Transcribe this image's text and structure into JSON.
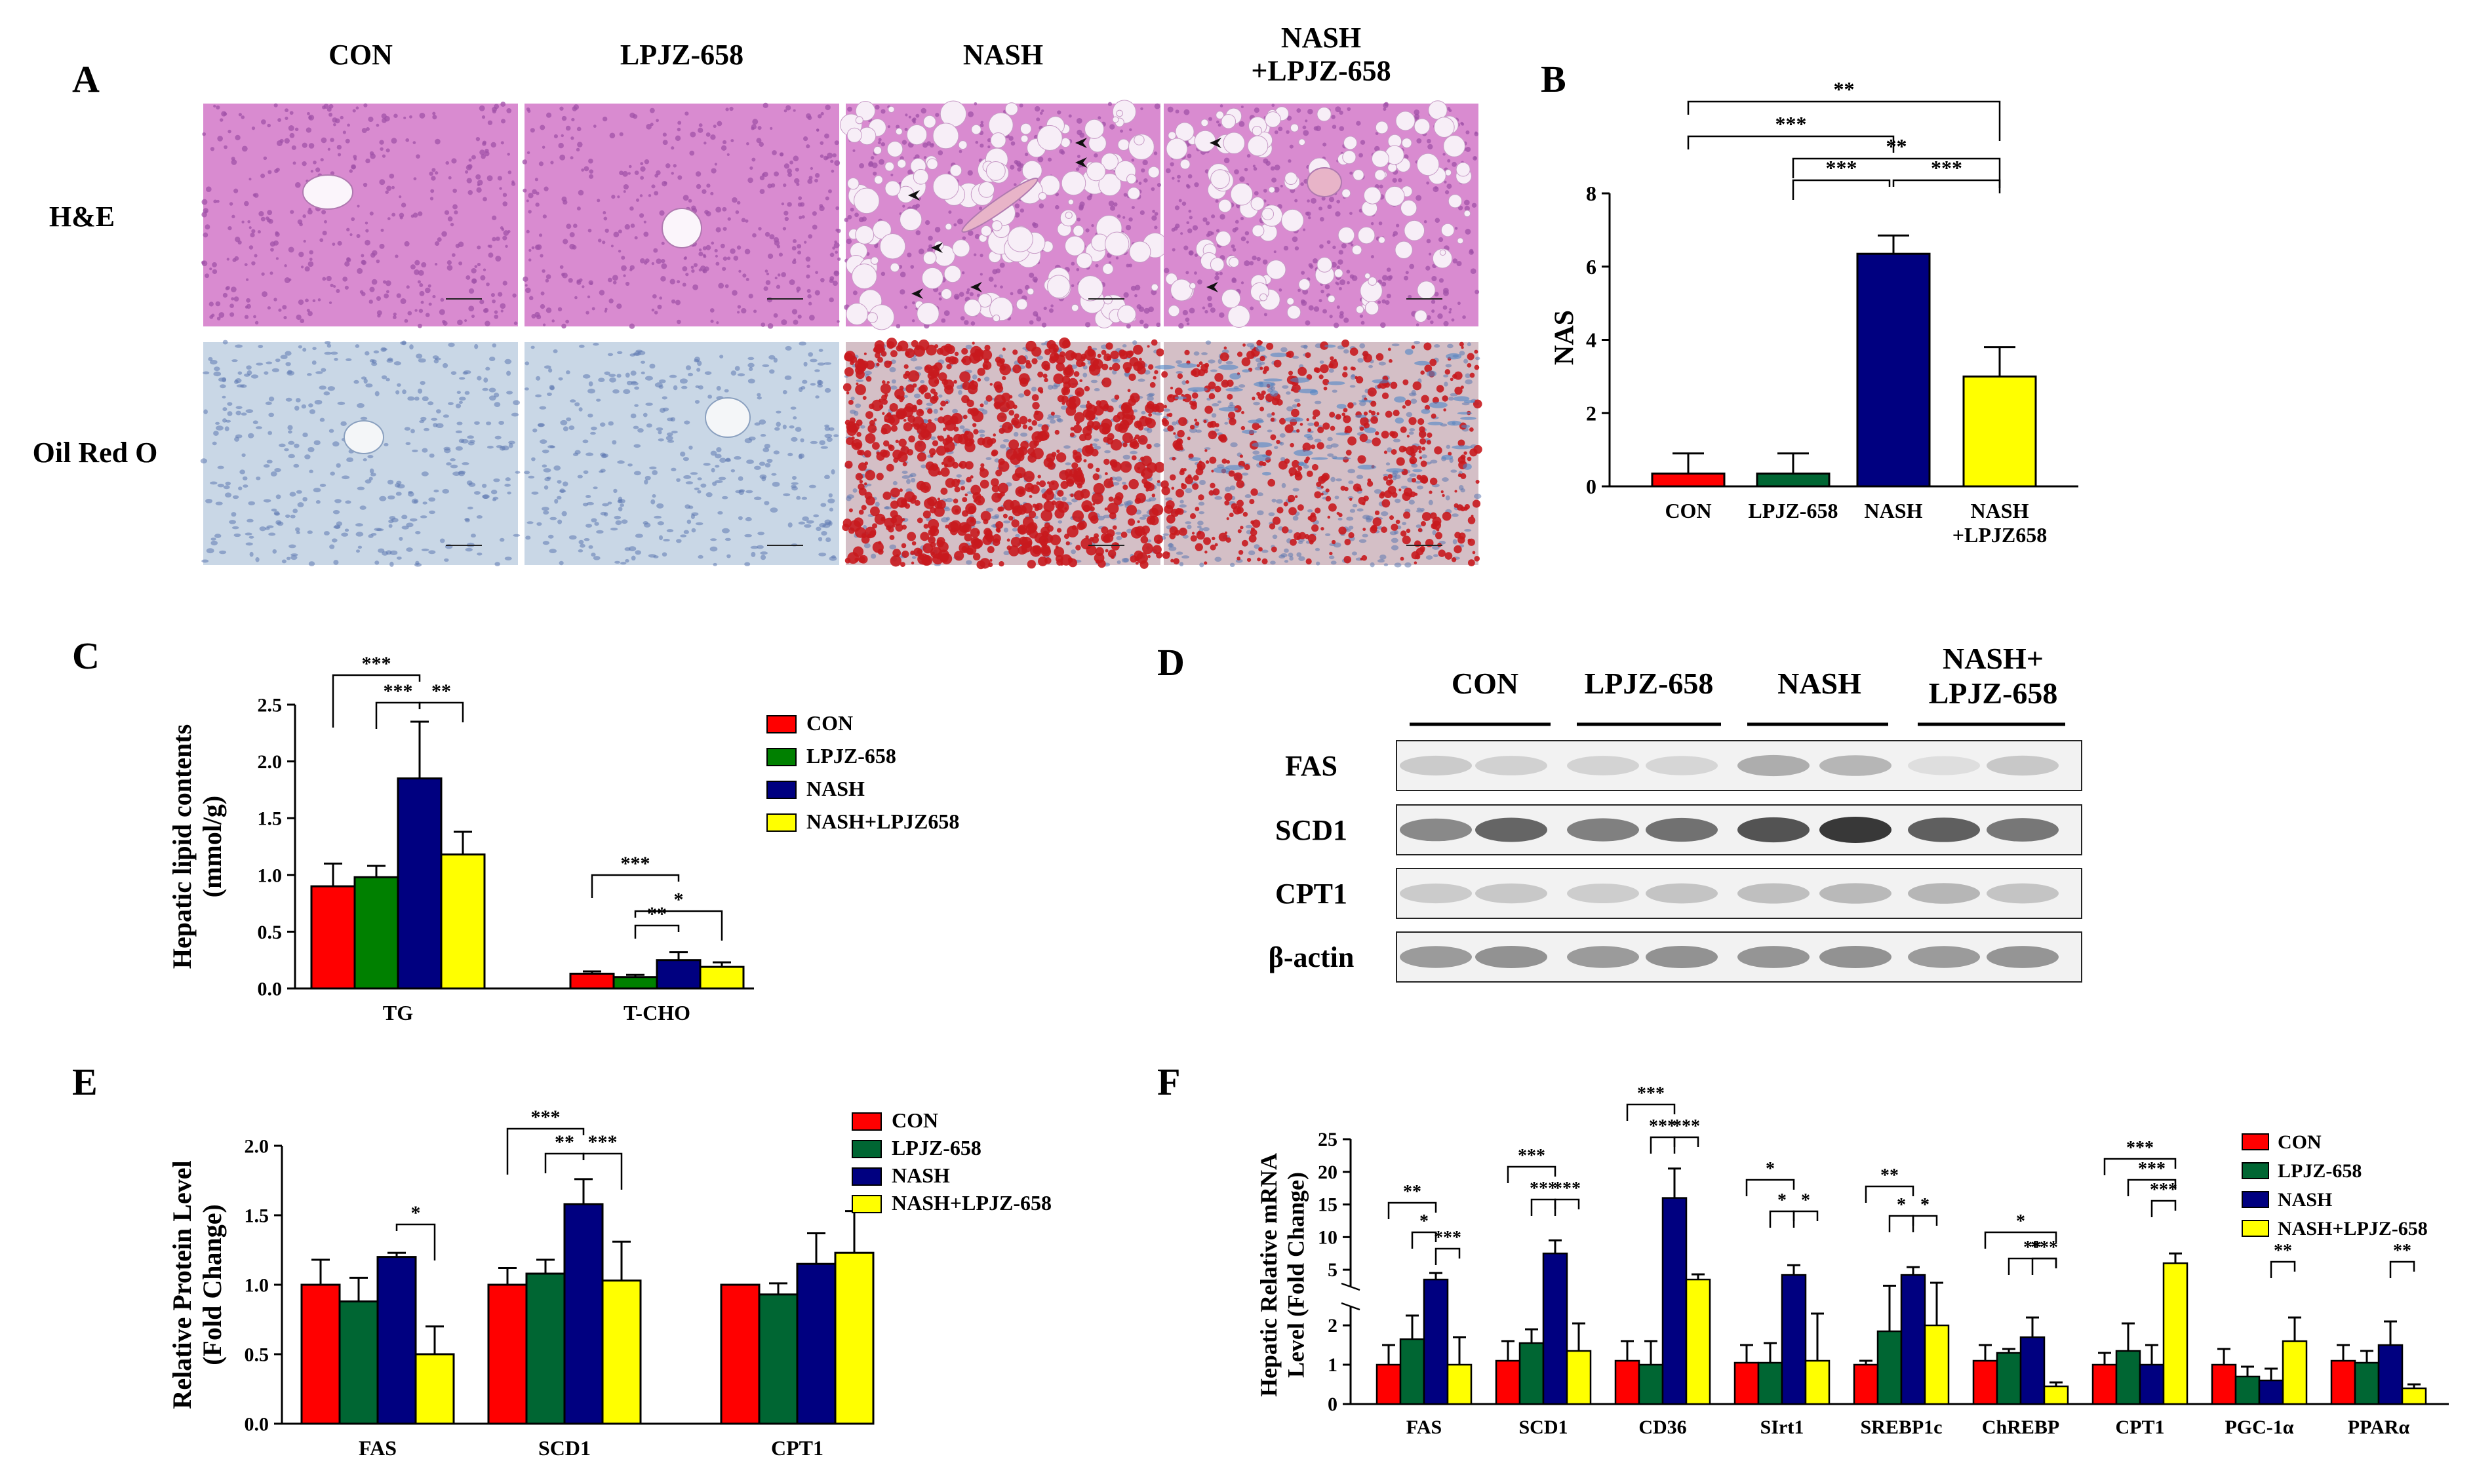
{
  "colors": {
    "con": "#ff0000",
    "lpjz_panelC": "#008000",
    "lpjz_dark": "#006633",
    "nash": "#000080",
    "combo": "#ffff00",
    "he_pink": "#d98bd0",
    "he_dark": "#a052a8",
    "oro_bg": "#c9d7e6",
    "oro_red": "#c8191e",
    "blot_bg": "#f2f2f2"
  },
  "panel_letters": [
    "A",
    "B",
    "C",
    "D",
    "E",
    "F"
  ],
  "panelA": {
    "column_labels": [
      "CON",
      "LPJZ-658",
      "NASH",
      "NASH\n+LPJZ-658"
    ],
    "row_labels": [
      "H&E",
      "Oil Red O"
    ],
    "icon_names": [
      "he-stain-tissue-icon",
      "oil-red-o-tissue-icon",
      "arrowhead-icon"
    ]
  },
  "panelB": {
    "chart_data": {
      "type": "bar",
      "ylabel": "NAS",
      "ylim": [
        0,
        8
      ],
      "yticks": [
        "0",
        "2",
        "4",
        "6",
        "8"
      ],
      "categories": [
        "CON",
        "LPJZ-658",
        "NASH",
        "NASH\n+LPJZ658"
      ],
      "values": [
        0.35,
        0.35,
        6.35,
        3.0
      ],
      "errors": [
        0.55,
        0.55,
        0.5,
        0.8
      ],
      "significance": [
        {
          "from": 0,
          "to": 3,
          "label": "**"
        },
        {
          "from": 0,
          "to": 2,
          "label": "***"
        },
        {
          "from": 1,
          "to": 3,
          "label": "**"
        },
        {
          "from": 1,
          "to": 2,
          "label": "***"
        },
        {
          "from": 2,
          "to": 3,
          "label": "***"
        }
      ]
    }
  },
  "panelC": {
    "chart_data": {
      "type": "bar",
      "ylabel": "Hepatic lipid contents\n(mmol/g)",
      "ylim": [
        0,
        2.5
      ],
      "yticks": [
        "0.0",
        "0.5",
        "1.0",
        "1.5",
        "2.0",
        "2.5"
      ],
      "categories": [
        "TG",
        "T-CHO"
      ],
      "series": [
        {
          "name": "CON",
          "values": [
            0.9,
            0.13
          ],
          "errors": [
            0.2,
            0.02
          ]
        },
        {
          "name": "LPJZ-658",
          "values": [
            0.98,
            0.1
          ],
          "errors": [
            0.1,
            0.02
          ]
        },
        {
          "name": "NASH",
          "values": [
            1.85,
            0.25
          ],
          "errors": [
            0.5,
            0.07
          ]
        },
        {
          "name": "NASH+LPJZ658",
          "values": [
            1.18,
            0.19
          ],
          "errors": [
            0.2,
            0.04
          ]
        }
      ],
      "significance": [
        {
          "group": 0,
          "from": 0,
          "to": 2,
          "label": "***"
        },
        {
          "group": 0,
          "from": 1,
          "to": 2,
          "label": "***"
        },
        {
          "group": 0,
          "from": 2,
          "to": 3,
          "label": "**"
        },
        {
          "group": 1,
          "from": 0,
          "to": 2,
          "label": "***"
        },
        {
          "group": 1,
          "from": 1,
          "to": 2,
          "label": "**"
        },
        {
          "group": 1,
          "from": 1,
          "to": 3,
          "label": "*"
        }
      ],
      "legend": "right"
    }
  },
  "panelD": {
    "group_labels": [
      "CON",
      "LPJZ-658",
      "NASH",
      "NASH+\nLPJZ-658"
    ],
    "blot_labels": [
      "FAS",
      "SCD1",
      "CPT1",
      "β-actin"
    ],
    "band_intensity": [
      [
        0.18,
        0.15,
        0.14,
        0.12,
        0.35,
        0.3,
        0.08,
        0.2
      ],
      [
        0.55,
        0.75,
        0.6,
        0.68,
        0.85,
        1.0,
        0.78,
        0.65
      ],
      [
        0.18,
        0.2,
        0.17,
        0.22,
        0.25,
        0.28,
        0.3,
        0.22
      ],
      [
        0.45,
        0.5,
        0.45,
        0.5,
        0.48,
        0.5,
        0.45,
        0.48
      ]
    ]
  },
  "panelE": {
    "chart_data": {
      "type": "bar",
      "ylabel": "Relative Protein Level\n(Fold Change)",
      "ylim": [
        0,
        2.0
      ],
      "yticks": [
        "0.0",
        "0.5",
        "1.0",
        "1.5",
        "2.0"
      ],
      "categories": [
        "FAS",
        "SCD1",
        "CPT1"
      ],
      "series": [
        {
          "name": "CON",
          "values": [
            1.0,
            1.0,
            1.0
          ],
          "errors": [
            0.18,
            0.12,
            0.0
          ]
        },
        {
          "name": "LPJZ-658",
          "values": [
            0.88,
            1.08,
            0.93
          ],
          "errors": [
            0.17,
            0.1,
            0.08
          ]
        },
        {
          "name": "NASH",
          "values": [
            1.2,
            1.58,
            1.15
          ],
          "errors": [
            0.03,
            0.18,
            0.22
          ]
        },
        {
          "name": "NASH+LPJZ-658",
          "values": [
            0.5,
            1.03,
            1.23
          ],
          "errors": [
            0.2,
            0.28,
            0.3
          ]
        }
      ],
      "significance": [
        {
          "group": 0,
          "from": 2,
          "to": 3,
          "label": "*"
        },
        {
          "group": 1,
          "from": 0,
          "to": 2,
          "label": "***"
        },
        {
          "group": 1,
          "from": 1,
          "to": 2,
          "label": "**"
        },
        {
          "group": 1,
          "from": 2,
          "to": 3,
          "label": "***"
        }
      ],
      "legend": "right"
    }
  },
  "panelF": {
    "chart_data": {
      "type": "bar",
      "ylabel": "Hepatic Relative mRNA\nLevel (Fold Change)",
      "axis_break": true,
      "yticks_lower": [
        "0",
        "1",
        "2"
      ],
      "yticks_upper": [
        "5",
        "10",
        "15",
        "20",
        "25"
      ],
      "categories": [
        "FAS",
        "SCD1",
        "CD36",
        "SIrt1",
        "SREBP1c",
        "ChREBP",
        "CPT1",
        "PGC-1α",
        "PPARα"
      ],
      "series": [
        {
          "name": "CON",
          "values": [
            1.0,
            1.1,
            1.1,
            1.05,
            1.0,
            1.1,
            1.0,
            1.0,
            1.1
          ],
          "errors": [
            0.5,
            0.5,
            0.5,
            0.45,
            0.1,
            0.4,
            0.3,
            0.4,
            0.4
          ]
        },
        {
          "name": "LPJZ-658",
          "values": [
            1.65,
            1.55,
            1.0,
            1.05,
            1.85,
            1.3,
            1.35,
            0.7,
            1.05
          ],
          "errors": [
            0.6,
            0.35,
            0.6,
            0.5,
            0.7,
            0.1,
            0.7,
            0.25,
            0.3
          ]
        },
        {
          "name": "NASH",
          "values": [
            3.5,
            7.5,
            16.0,
            4.2,
            4.2,
            1.7,
            1.0,
            0.6,
            1.5
          ],
          "errors": [
            1.0,
            2.0,
            4.5,
            1.5,
            1.2,
            0.5,
            0.5,
            0.3,
            0.6
          ]
        },
        {
          "name": "NASH+LPJZ-658",
          "values": [
            1.0,
            1.35,
            3.5,
            1.1,
            2.0,
            0.45,
            6.0,
            1.6,
            0.4
          ],
          "errors": [
            0.7,
            0.7,
            0.8,
            1.2,
            1.0,
            0.1,
            1.5,
            0.6,
            0.1
          ]
        }
      ],
      "significance": [
        {
          "group": 0,
          "from": 0,
          "to": 2,
          "label": "**"
        },
        {
          "group": 0,
          "from": 1,
          "to": 2,
          "label": "*"
        },
        {
          "group": 0,
          "from": 2,
          "to": 3,
          "label": "***"
        },
        {
          "group": 1,
          "from": 0,
          "to": 2,
          "label": "***"
        },
        {
          "group": 1,
          "from": 1,
          "to": 2,
          "label": "***"
        },
        {
          "group": 1,
          "from": 2,
          "to": 3,
          "label": "***"
        },
        {
          "group": 2,
          "from": 0,
          "to": 2,
          "label": "***"
        },
        {
          "group": 2,
          "from": 1,
          "to": 2,
          "label": "***"
        },
        {
          "group": 2,
          "from": 2,
          "to": 3,
          "label": "***"
        },
        {
          "group": 3,
          "from": 0,
          "to": 2,
          "label": "*"
        },
        {
          "group": 3,
          "from": 1,
          "to": 2,
          "label": "*"
        },
        {
          "group": 3,
          "from": 2,
          "to": 3,
          "label": "*"
        },
        {
          "group": 4,
          "from": 0,
          "to": 2,
          "label": "**"
        },
        {
          "group": 4,
          "from": 1,
          "to": 2,
          "label": "*"
        },
        {
          "group": 4,
          "from": 2,
          "to": 3,
          "label": "*"
        },
        {
          "group": 5,
          "from": 0,
          "to": 3,
          "label": "*"
        },
        {
          "group": 5,
          "from": 1,
          "to": 3,
          "label": "**"
        },
        {
          "group": 5,
          "from": 2,
          "to": 3,
          "label": "***"
        },
        {
          "group": 6,
          "from": 0,
          "to": 3,
          "label": "***"
        },
        {
          "group": 6,
          "from": 1,
          "to": 3,
          "label": "***"
        },
        {
          "group": 6,
          "from": 2,
          "to": 3,
          "label": "***"
        },
        {
          "group": 7,
          "from": 2,
          "to": 3,
          "label": "**"
        },
        {
          "group": 8,
          "from": 2,
          "to": 3,
          "label": "**"
        }
      ],
      "legend": "right"
    }
  }
}
